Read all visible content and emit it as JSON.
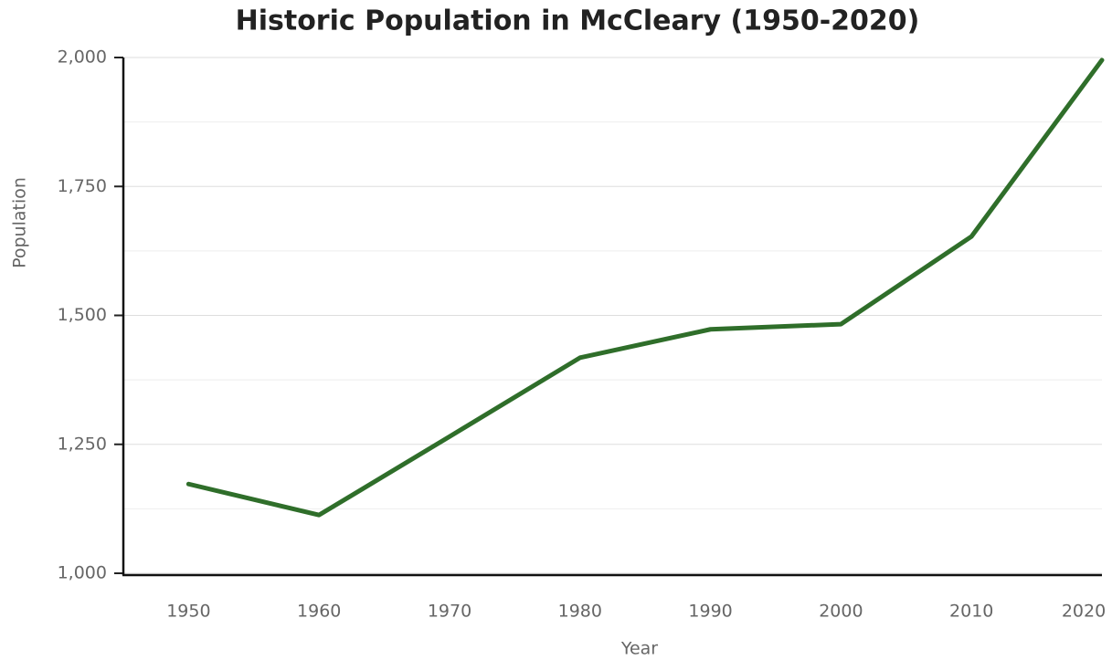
{
  "chart_data": {
    "type": "line",
    "title": "Historic Population in McCleary (1950-2020)",
    "x_label": "Year",
    "y_label": "Population",
    "x": [
      1950,
      1960,
      1970,
      1980,
      1990,
      2000,
      2010,
      2020
    ],
    "series": [
      {
        "name": "Population",
        "color": "#2f6e2a",
        "values": [
          1173,
          1113,
          1265,
          1418,
          1473,
          1483,
          1653,
          1995
        ]
      }
    ],
    "xlim": [
      1945,
      2020
    ],
    "xticks": [
      1950,
      1960,
      1970,
      1980,
      1990,
      2000,
      2010,
      2020
    ],
    "ylim": [
      1000,
      2000
    ],
    "yticks": [
      {
        "value": 1000,
        "label": "1,000"
      },
      {
        "value": 1250,
        "label": "1,250"
      },
      {
        "value": 1500,
        "label": "1,500"
      },
      {
        "value": 1750,
        "label": "1,750"
      },
      {
        "value": 2000,
        "label": "2,000"
      }
    ],
    "minor_yticks": [
      1125,
      1375,
      1625,
      1875
    ],
    "grid": true
  }
}
